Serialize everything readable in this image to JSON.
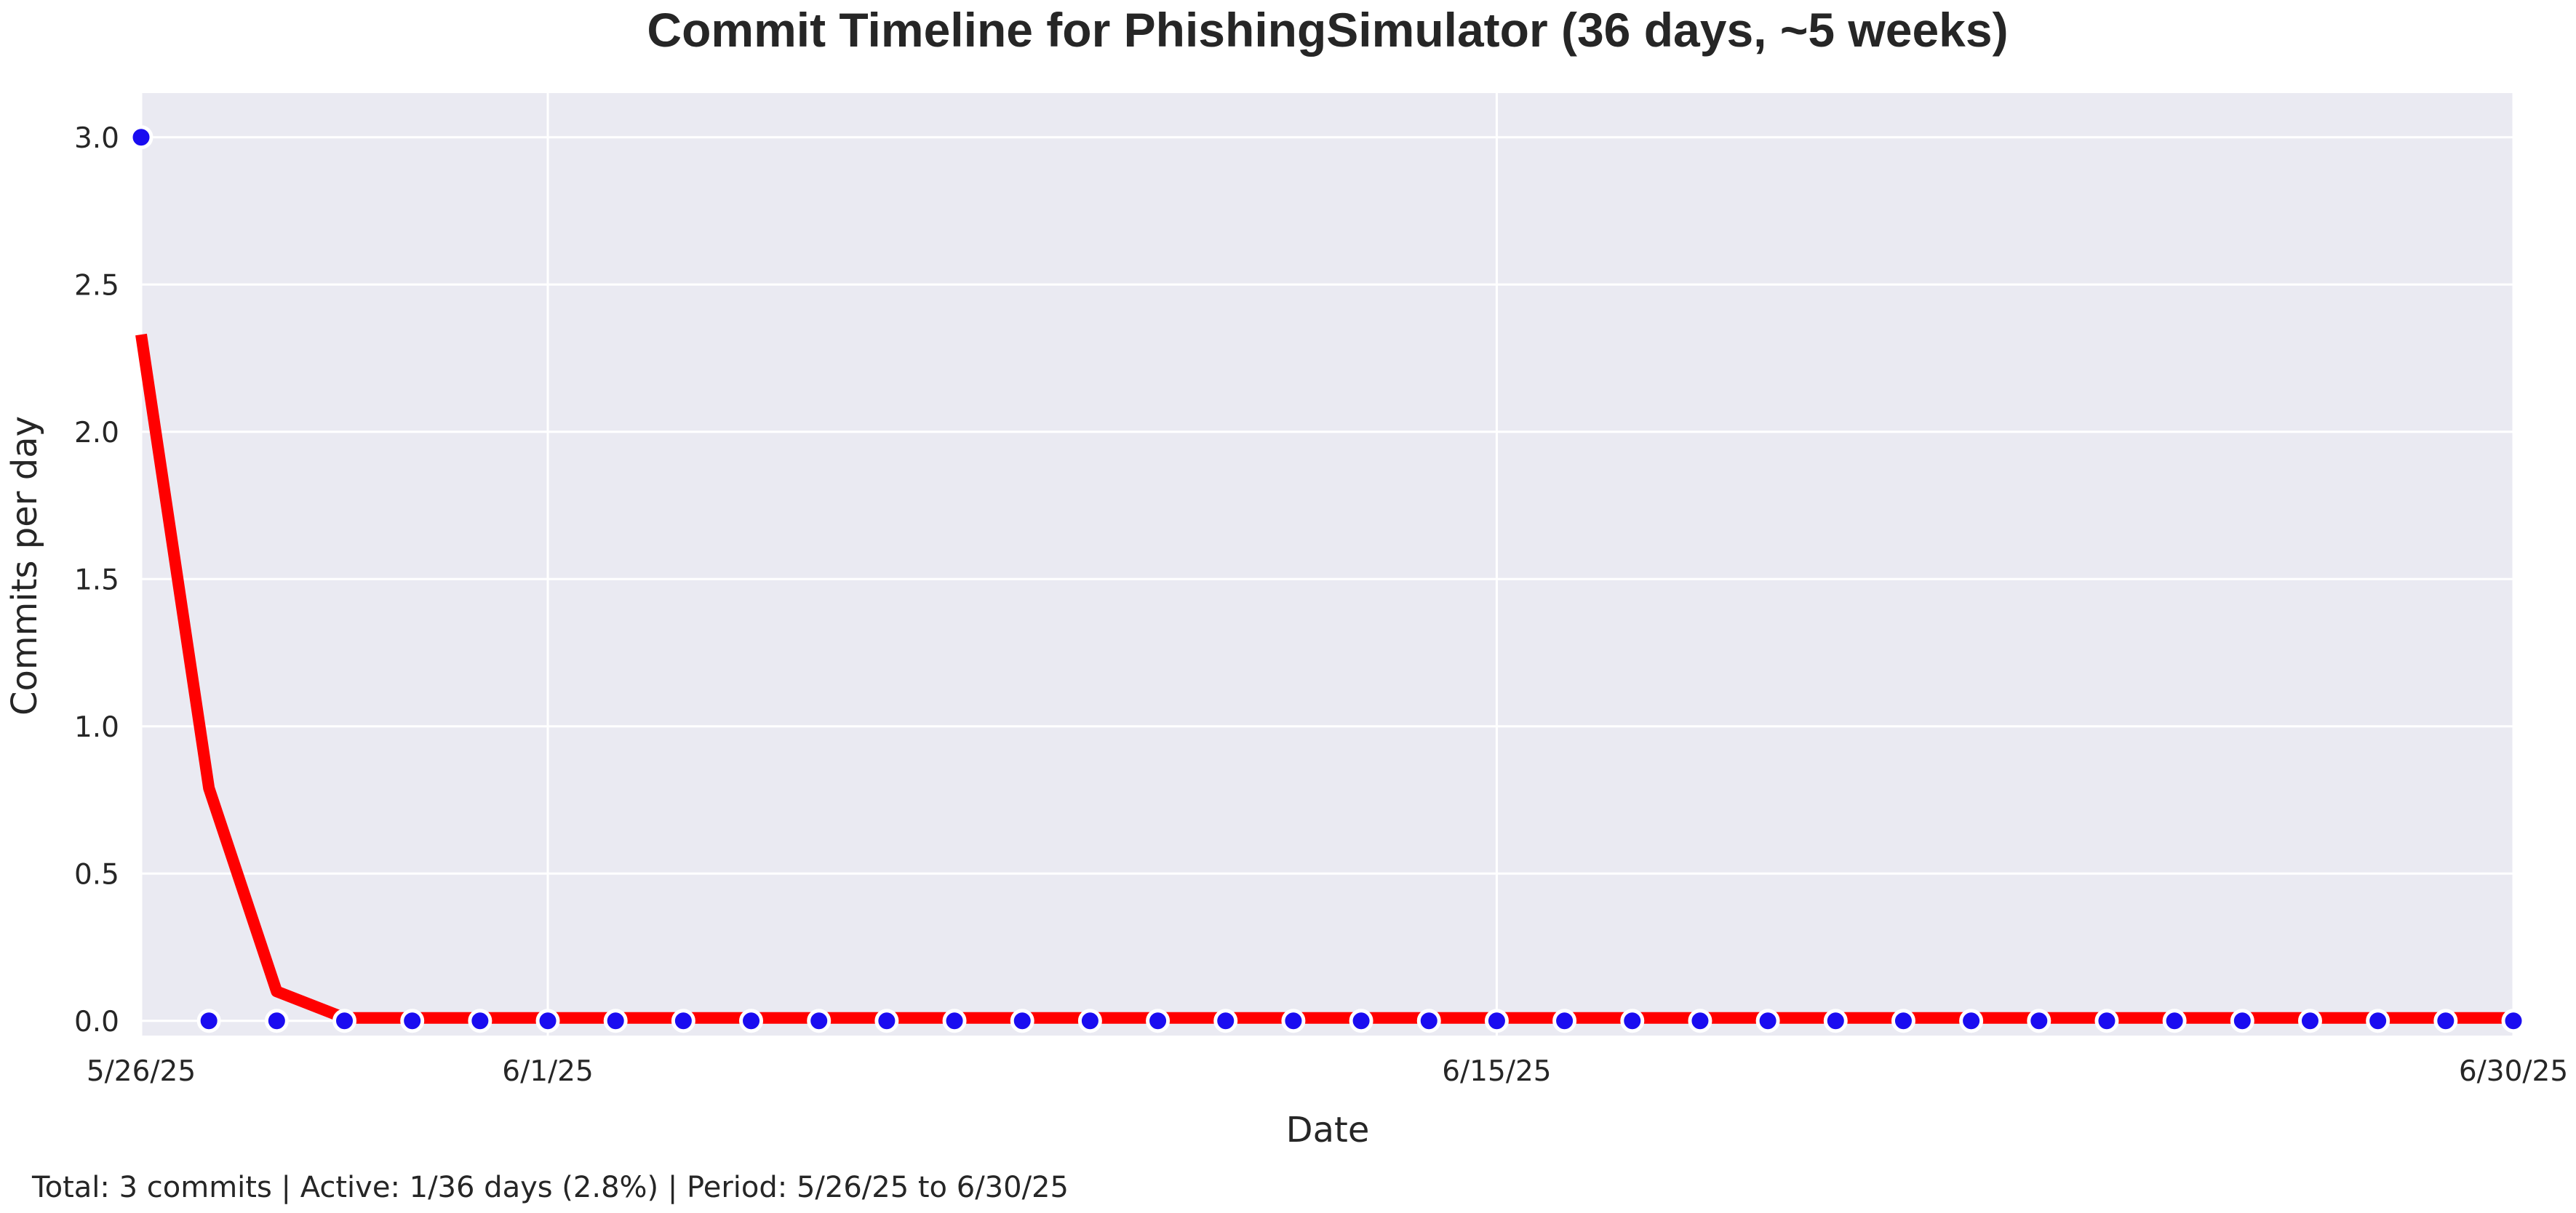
{
  "chart_data": {
    "type": "line",
    "title": "Commit Timeline for PhishingSimulator (36 days, ~5 weeks)",
    "xlabel": "Date",
    "ylabel": "Commits per day",
    "footer": "Total: 3 commits | Active: 1/36 days (2.8%) | Period: 5/26/25 to 6/30/25",
    "x_start": "2025-05-26",
    "x_end": "2025-06-30",
    "x_ticks": [
      {
        "date": "2025-05-26",
        "label": "5/26/25"
      },
      {
        "date": "2025-06-01",
        "label": "6/1/25"
      },
      {
        "date": "2025-06-15",
        "label": "6/15/25"
      },
      {
        "date": "2025-06-30",
        "label": "6/30/25"
      }
    ],
    "ylim": [
      -0.05,
      3.15
    ],
    "y_ticks": [
      {
        "value": 0.0,
        "label": "0.0"
      },
      {
        "value": 0.5,
        "label": "0.5"
      },
      {
        "value": 1.0,
        "label": "1.0"
      },
      {
        "value": 1.5,
        "label": "1.5"
      },
      {
        "value": 2.0,
        "label": "2.0"
      },
      {
        "value": 2.5,
        "label": "2.5"
      },
      {
        "value": 3.0,
        "label": "3.0"
      }
    ],
    "grid": true,
    "colors": {
      "background": "#eaeaf2",
      "grid": "#ffffff",
      "points": "#1a0cf0",
      "trend": "#ff0000"
    },
    "series": [
      {
        "kind": "scatter",
        "dates": [
          "2025-05-26",
          "2025-05-27",
          "2025-05-28",
          "2025-05-29",
          "2025-05-30",
          "2025-05-31",
          "2025-06-01",
          "2025-06-02",
          "2025-06-03",
          "2025-06-04",
          "2025-06-05",
          "2025-06-06",
          "2025-06-07",
          "2025-06-08",
          "2025-06-09",
          "2025-06-10",
          "2025-06-11",
          "2025-06-12",
          "2025-06-13",
          "2025-06-14",
          "2025-06-15",
          "2025-06-16",
          "2025-06-17",
          "2025-06-18",
          "2025-06-19",
          "2025-06-20",
          "2025-06-21",
          "2025-06-22",
          "2025-06-23",
          "2025-06-24",
          "2025-06-25",
          "2025-06-26",
          "2025-06-27",
          "2025-06-28",
          "2025-06-29",
          "2025-06-30"
        ],
        "values": [
          3,
          0,
          0,
          0,
          0,
          0,
          0,
          0,
          0,
          0,
          0,
          0,
          0,
          0,
          0,
          0,
          0,
          0,
          0,
          0,
          0,
          0,
          0,
          0,
          0,
          0,
          0,
          0,
          0,
          0,
          0,
          0,
          0,
          0,
          0,
          0
        ]
      },
      {
        "kind": "line",
        "dates": [
          "2025-05-26",
          "2025-05-27",
          "2025-05-28",
          "2025-05-29",
          "2025-05-30",
          "2025-05-31",
          "2025-06-01",
          "2025-06-02",
          "2025-06-03",
          "2025-06-04",
          "2025-06-05",
          "2025-06-06",
          "2025-06-07",
          "2025-06-08",
          "2025-06-09",
          "2025-06-10",
          "2025-06-11",
          "2025-06-12",
          "2025-06-13",
          "2025-06-14",
          "2025-06-15",
          "2025-06-16",
          "2025-06-17",
          "2025-06-18",
          "2025-06-19",
          "2025-06-20",
          "2025-06-21",
          "2025-06-22",
          "2025-06-23",
          "2025-06-24",
          "2025-06-25",
          "2025-06-26",
          "2025-06-27",
          "2025-06-28",
          "2025-06-29",
          "2025-06-30"
        ],
        "values": [
          2.33,
          0.79,
          0.1,
          0.01,
          0.01,
          0.01,
          0.01,
          0.01,
          0.01,
          0.01,
          0.01,
          0.01,
          0.01,
          0.01,
          0.01,
          0.01,
          0.01,
          0.01,
          0.01,
          0.01,
          0.01,
          0.01,
          0.01,
          0.01,
          0.01,
          0.01,
          0.01,
          0.01,
          0.01,
          0.01,
          0.01,
          0.01,
          0.01,
          0.01,
          0.01,
          0.01
        ]
      }
    ]
  }
}
